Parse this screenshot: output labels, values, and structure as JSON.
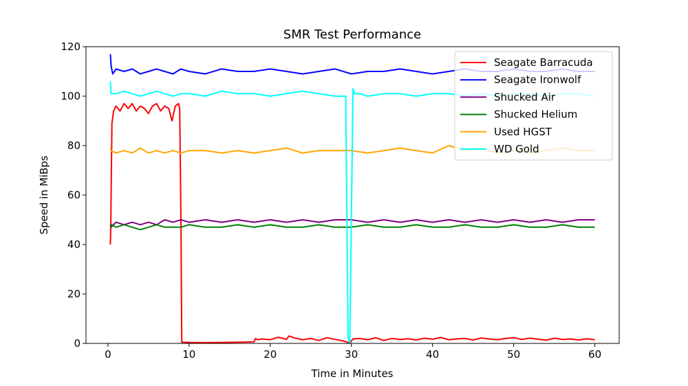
{
  "chart_data": {
    "type": "line",
    "title": "SMR Test Performance",
    "xlabel": "Time in Minutes",
    "ylabel": "Speed in MiBps",
    "xlim": [
      -2.7,
      63.0
    ],
    "ylim": [
      0,
      120
    ],
    "xticks": [
      0,
      10,
      20,
      30,
      40,
      50,
      60
    ],
    "yticks": [
      0,
      20,
      40,
      60,
      80,
      100,
      120
    ],
    "grid": false,
    "legend_position": "top-right",
    "series": [
      {
        "name": "Seagate Barracuda",
        "color": "#ff0000",
        "x": [
          0.3,
          0.35,
          0.5,
          0.7,
          1,
          1.5,
          2,
          2.5,
          3,
          3.5,
          4,
          4.5,
          5,
          5.5,
          6,
          6.5,
          7,
          7.5,
          7.9,
          8.3,
          8.7,
          8.85,
          9.0,
          9.1,
          10,
          12,
          14,
          16,
          18,
          18.2,
          18.4,
          19,
          20,
          21,
          22,
          22.3,
          23,
          24,
          25,
          26,
          27,
          28,
          29,
          29.5,
          29.8,
          30,
          30.2,
          31,
          32,
          33,
          34,
          35,
          36,
          37,
          38,
          39,
          40,
          41,
          42,
          43,
          44,
          45,
          46,
          47,
          48,
          49,
          50,
          51,
          52,
          53,
          54,
          55,
          56,
          57,
          58,
          59,
          60
        ],
        "y": [
          40,
          47,
          89,
          94,
          96,
          94,
          97,
          95,
          97,
          94,
          96,
          95,
          93,
          96,
          97,
          94,
          96,
          95,
          90,
          96,
          97,
          95,
          50,
          0.5,
          0.4,
          0.3,
          0.4,
          0.5,
          0.6,
          2.0,
          1.5,
          1.8,
          1.5,
          2.5,
          1.6,
          3.0,
          2.2,
          1.5,
          2.0,
          1.2,
          2.3,
          1.6,
          1.0,
          0.5,
          0,
          1.0,
          1.8,
          2.0,
          1.5,
          2.3,
          1.2,
          2.0,
          1.6,
          1.9,
          1.4,
          2.1,
          1.7,
          2.4,
          1.5,
          1.8,
          2.0,
          1.4,
          2.2,
          1.8,
          1.5,
          2.0,
          2.3,
          1.6,
          2.1,
          1.7,
          1.3,
          2.1,
          1.6,
          1.8,
          1.4,
          1.9,
          1.5
        ]
      },
      {
        "name": "Seagate Ironwolf",
        "color": "#0000ff",
        "x": [
          0.3,
          0.4,
          0.6,
          1,
          2,
          3,
          4,
          5,
          6,
          7,
          8,
          9,
          10,
          12,
          14,
          16,
          18,
          20,
          22,
          24,
          26,
          28,
          30,
          32,
          34,
          36,
          38,
          40,
          42,
          44,
          46,
          48,
          50,
          52,
          54,
          56,
          58,
          60
        ],
        "y": [
          117,
          112,
          109,
          111,
          110,
          111,
          109,
          110,
          111,
          110,
          109,
          111,
          110,
          109,
          111,
          110,
          110,
          111,
          110,
          109,
          110,
          111,
          109,
          110,
          110,
          111,
          110,
          109,
          110,
          111,
          110,
          110,
          111,
          110,
          110,
          111,
          110,
          110
        ]
      },
      {
        "name": "Shucked Air",
        "color": "#800080",
        "x": [
          0.3,
          0.4,
          1,
          2,
          3,
          4,
          5,
          6,
          7,
          8,
          9,
          10,
          12,
          14,
          16,
          18,
          20,
          22,
          24,
          26,
          28,
          30,
          32,
          34,
          36,
          38,
          40,
          42,
          44,
          46,
          48,
          50,
          52,
          54,
          56,
          58,
          60
        ],
        "y": [
          48,
          47,
          49,
          48,
          49,
          48,
          49,
          48,
          50,
          49,
          50,
          49,
          50,
          49,
          50,
          49,
          50,
          49,
          50,
          49,
          50,
          50,
          49,
          50,
          49,
          50,
          49,
          50,
          49,
          50,
          49,
          50,
          49,
          50,
          49,
          50,
          50
        ]
      },
      {
        "name": "Shucked Helium",
        "color": "#008000",
        "x": [
          0.3,
          0.5,
          1,
          2,
          3,
          4,
          5,
          6,
          7,
          8,
          9,
          10,
          12,
          14,
          16,
          18,
          20,
          22,
          24,
          26,
          28,
          30,
          32,
          34,
          36,
          38,
          40,
          42,
          44,
          46,
          48,
          50,
          52,
          54,
          56,
          58,
          60
        ],
        "y": [
          47,
          48,
          47,
          48,
          47,
          46,
          47,
          48,
          47,
          47,
          47,
          48,
          47,
          47,
          48,
          47,
          48,
          47,
          47,
          48,
          47,
          47,
          48,
          47,
          47,
          48,
          47,
          47,
          48,
          47,
          47,
          48,
          47,
          47,
          48,
          47,
          47
        ]
      },
      {
        "name": "Used HGST",
        "color": "#ffa500",
        "x": [
          0.3,
          0.4,
          1,
          2,
          3,
          4,
          5,
          6,
          7,
          8,
          9,
          10,
          12,
          14,
          16,
          18,
          20,
          22,
          24,
          26,
          28,
          30,
          32,
          34,
          36,
          38,
          40,
          42,
          44,
          46,
          48,
          50,
          52,
          54,
          56,
          58,
          60
        ],
        "y": [
          79,
          78,
          77,
          78,
          77,
          79,
          77,
          78,
          77,
          78,
          77,
          78,
          78,
          77,
          78,
          77,
          78,
          79,
          77,
          78,
          78,
          78,
          77,
          78,
          79,
          78,
          77,
          80,
          78,
          79,
          77,
          78,
          77,
          78,
          79,
          78,
          78
        ]
      },
      {
        "name": "WD Gold",
        "color": "#00ffff",
        "x": [
          0.3,
          0.4,
          1,
          2,
          3,
          4,
          5,
          6,
          7,
          8,
          9,
          10,
          12,
          14,
          16,
          18,
          20,
          22,
          24,
          26,
          28,
          29.3,
          29.6,
          29.8,
          30.0,
          30.2,
          30.4,
          31,
          32,
          34,
          36,
          38,
          40,
          42,
          44,
          46,
          48,
          50,
          52,
          54,
          56,
          58,
          60
        ],
        "y": [
          106,
          101,
          101,
          102,
          101,
          100,
          101,
          102,
          101,
          100,
          101,
          101,
          100,
          102,
          101,
          101,
          100,
          101,
          102,
          101,
          100,
          100,
          2,
          0,
          50,
          103,
          101,
          101,
          100,
          101,
          101,
          100,
          101,
          101,
          100,
          101,
          100,
          101,
          101,
          100,
          101,
          101,
          100
        ]
      }
    ]
  }
}
